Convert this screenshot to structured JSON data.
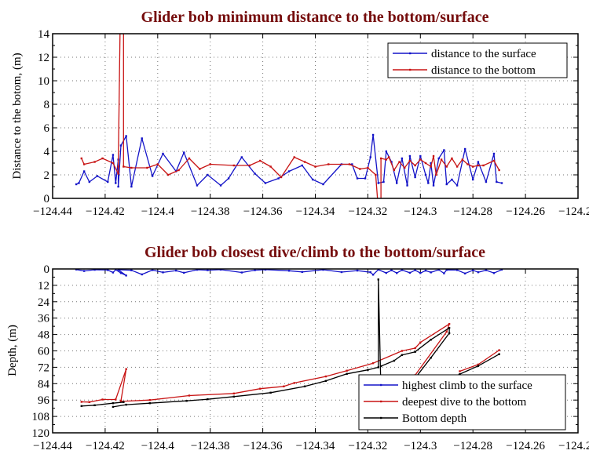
{
  "colors": {
    "surface": "#1414c8",
    "bottom": "#c81414",
    "depth": "#000000",
    "title": "#750c0c"
  },
  "chart_data": [
    {
      "type": "line",
      "title": "Glider bob minimum distance to the bottom/surface",
      "xlabel": "",
      "ylabel": "Distance to the botom, (m)",
      "xlim": [
        -124.44,
        -124.24
      ],
      "ylim": [
        0,
        14
      ],
      "y_inverted": false,
      "xticks": [
        -124.44,
        -124.42,
        -124.4,
        -124.38,
        -124.36,
        -124.34,
        -124.32,
        -124.3,
        -124.28,
        -124.26,
        -124.24
      ],
      "xtick_labels": [
        "−124.44",
        "−124.42",
        "−124.4",
        "−124.38",
        "−124.36",
        "−124.34",
        "−124.32",
        "−124.3",
        "−124.28",
        "−124.26",
        "−124.24"
      ],
      "yticks": [
        0,
        2,
        4,
        6,
        8,
        10,
        12,
        14
      ],
      "ytick_labels": [
        "0",
        "2",
        "4",
        "6",
        "8",
        "10",
        "12",
        "14"
      ],
      "grid": true,
      "legend_position": "top-right",
      "series": [
        {
          "name": "distance to the surface",
          "color_key": "surface",
          "points": [
            [
              -124.431,
              1.2
            ],
            [
              -124.43,
              1.3
            ],
            [
              -124.428,
              2.3
            ],
            [
              -124.426,
              1.4
            ],
            [
              -124.423,
              1.9
            ],
            [
              -124.419,
              1.4
            ],
            [
              -124.417,
              3.7
            ],
            [
              -124.416,
              1.3
            ],
            [
              -124.415,
              3.3
            ],
            [
              -124.415,
              1.0
            ],
            [
              -124.414,
              4.5
            ],
            [
              -124.412,
              5.3
            ],
            [
              -124.41,
              1.0
            ],
            [
              -124.406,
              5.1
            ],
            [
              -124.402,
              1.9
            ],
            [
              -124.398,
              3.8
            ],
            [
              -124.393,
              2.3
            ],
            [
              -124.39,
              3.9
            ],
            [
              -124.385,
              1.1
            ],
            [
              -124.381,
              2.0
            ],
            [
              -124.376,
              1.1
            ],
            [
              -124.373,
              1.7
            ],
            [
              -124.368,
              3.5
            ],
            [
              -124.363,
              2.1
            ],
            [
              -124.359,
              1.3
            ],
            [
              -124.354,
              1.7
            ],
            [
              -124.35,
              2.3
            ],
            [
              -124.345,
              2.8
            ],
            [
              -124.341,
              1.6
            ],
            [
              -124.337,
              1.2
            ],
            [
              -124.33,
              2.9
            ],
            [
              -124.326,
              2.9
            ],
            [
              -124.324,
              1.7
            ],
            [
              -124.321,
              1.7
            ],
            [
              -124.319,
              3.5
            ],
            [
              -124.318,
              5.4
            ],
            [
              -124.316,
              1.3
            ],
            [
              -124.314,
              1.4
            ],
            [
              -124.313,
              4.0
            ],
            [
              -124.311,
              3.1
            ],
            [
              -124.309,
              1.3
            ],
            [
              -124.307,
              3.4
            ],
            [
              -124.305,
              1.1
            ],
            [
              -124.304,
              3.6
            ],
            [
              -124.302,
              1.8
            ],
            [
              -124.3,
              3.6
            ],
            [
              -124.298,
              2.0
            ],
            [
              -124.297,
              1.3
            ],
            [
              -124.296,
              3.0
            ],
            [
              -124.295,
              1.1
            ],
            [
              -124.293,
              3.4
            ],
            [
              -124.291,
              4.1
            ],
            [
              -124.29,
              1.2
            ],
            [
              -124.288,
              1.6
            ],
            [
              -124.286,
              1.1
            ],
            [
              -124.283,
              4.2
            ],
            [
              -124.28,
              1.6
            ],
            [
              -124.278,
              3.1
            ],
            [
              -124.275,
              1.4
            ],
            [
              -124.272,
              3.8
            ],
            [
              -124.271,
              1.4
            ],
            [
              -124.269,
              1.3
            ]
          ]
        },
        {
          "name": "distance to the bottom",
          "color_key": "bottom",
          "points": [
            [
              -124.429,
              3.4
            ],
            [
              -124.428,
              2.9
            ],
            [
              -124.424,
              3.1
            ],
            [
              -124.421,
              3.4
            ],
            [
              -124.417,
              3.0
            ],
            [
              -124.415,
              2.1
            ],
            [
              -124.415,
              2.7
            ],
            [
              -124.414,
              20
            ],
            [
              -124.413,
              20
            ],
            [
              -124.413,
              2.7
            ],
            [
              -124.41,
              2.6
            ],
            [
              -124.404,
              2.6
            ],
            [
              -124.4,
              2.9
            ],
            [
              -124.396,
              2.0
            ],
            [
              -124.392,
              2.4
            ],
            [
              -124.388,
              3.4
            ],
            [
              -124.384,
              2.5
            ],
            [
              -124.38,
              2.9
            ],
            [
              -124.371,
              2.8
            ],
            [
              -124.365,
              2.8
            ],
            [
              -124.361,
              3.2
            ],
            [
              -124.357,
              2.7
            ],
            [
              -124.353,
              1.8
            ],
            [
              -124.348,
              3.5
            ],
            [
              -124.344,
              3.1
            ],
            [
              -124.34,
              2.7
            ],
            [
              -124.335,
              2.9
            ],
            [
              -124.327,
              2.9
            ],
            [
              -124.323,
              2.5
            ],
            [
              -124.32,
              2.6
            ],
            [
              -124.317,
              2.0
            ],
            [
              -124.316,
              -1
            ],
            [
              -124.315,
              -1
            ],
            [
              -124.315,
              3.4
            ],
            [
              -124.313,
              3.3
            ],
            [
              -124.312,
              3.5
            ],
            [
              -124.31,
              2.4
            ],
            [
              -124.308,
              3.1
            ],
            [
              -124.306,
              2.6
            ],
            [
              -124.304,
              3.2
            ],
            [
              -124.302,
              2.8
            ],
            [
              -124.3,
              3.3
            ],
            [
              -124.298,
              3.0
            ],
            [
              -124.296,
              2.7
            ],
            [
              -124.295,
              3.6
            ],
            [
              -124.294,
              2.0
            ],
            [
              -124.292,
              3.3
            ],
            [
              -124.29,
              2.7
            ],
            [
              -124.288,
              3.4
            ],
            [
              -124.286,
              2.7
            ],
            [
              -124.284,
              3.3
            ],
            [
              -124.282,
              2.9
            ],
            [
              -124.28,
              2.7
            ],
            [
              -124.278,
              2.8
            ],
            [
              -124.276,
              2.8
            ],
            [
              -124.272,
              3.2
            ],
            [
              -124.27,
              2.4
            ]
          ]
        }
      ]
    },
    {
      "type": "line",
      "title": "Glider bob closest dive/climb to the bottom/surface",
      "xlabel": "",
      "ylabel": "Depth, (m)",
      "xlim": [
        -124.44,
        -124.24
      ],
      "ylim": [
        0,
        120
      ],
      "y_inverted": true,
      "xticks": [
        -124.44,
        -124.42,
        -124.4,
        -124.38,
        -124.36,
        -124.34,
        -124.32,
        -124.3,
        -124.28,
        -124.26,
        -124.24
      ],
      "xtick_labels": [
        "−124.44",
        "−124.42",
        "−124.4",
        "−124.38",
        "−124.36",
        "−124.34",
        "−124.32",
        "−124.3",
        "−124.28",
        "−124.26",
        "−124.24"
      ],
      "yticks": [
        0,
        12,
        24,
        36,
        48,
        60,
        72,
        84,
        96,
        108,
        120
      ],
      "ytick_labels": [
        "0",
        "12",
        "24",
        "36",
        "48",
        "60",
        "72",
        "84",
        "96",
        "108",
        "120"
      ],
      "grid": true,
      "legend_position": "bottom-right",
      "series": [
        {
          "name": "highest climb to the surface",
          "color_key": "surface",
          "points": [
            [
              -124.431,
              0.4
            ],
            [
              -124.428,
              1.5
            ],
            [
              -124.424,
              0.6
            ],
            [
              -124.419,
              0.8
            ],
            [
              -124.417,
              2.6
            ],
            [
              -124.416,
              0.5
            ],
            [
              -124.414,
              3.0
            ],
            [
              -124.412,
              4.8
            ],
            [
              -124.415,
              0.6
            ],
            [
              -124.41,
              1.0
            ],
            [
              -124.406,
              4.0
            ],
            [
              -124.402,
              0.8
            ],
            [
              -124.398,
              2.5
            ],
            [
              -124.393,
              1.2
            ],
            [
              -124.39,
              2.8
            ],
            [
              -124.385,
              0.6
            ],
            [
              -124.381,
              0.9
            ],
            [
              -124.376,
              0.5
            ],
            [
              -124.368,
              2.6
            ],
            [
              -124.363,
              0.9
            ],
            [
              -124.359,
              0.5
            ],
            [
              -124.35,
              1.3
            ],
            [
              -124.345,
              2.2
            ],
            [
              -124.337,
              0.6
            ],
            [
              -124.33,
              2.3
            ],
            [
              -124.324,
              1.2
            ],
            [
              -124.319,
              2.4
            ],
            [
              -124.318,
              4.2
            ],
            [
              -124.316,
              0.5
            ],
            [
              -124.313,
              2.9
            ],
            [
              -124.311,
              1.0
            ],
            [
              -124.309,
              3.0
            ],
            [
              -124.307,
              0.8
            ],
            [
              -124.304,
              2.8
            ],
            [
              -124.302,
              0.9
            ],
            [
              -124.3,
              3.0
            ],
            [
              -124.298,
              1.2
            ],
            [
              -124.296,
              2.5
            ],
            [
              -124.293,
              0.6
            ],
            [
              -124.291,
              3.2
            ],
            [
              -124.29,
              0.7
            ],
            [
              -124.286,
              0.8
            ],
            [
              -124.283,
              3.3
            ],
            [
              -124.28,
              1.0
            ],
            [
              -124.278,
              2.4
            ],
            [
              -124.275,
              0.9
            ],
            [
              -124.272,
              3.0
            ],
            [
              -124.269,
              0.5
            ]
          ]
        },
        {
          "name": "deepest dive to the bottom",
          "color_key": "bottom",
          "points": [
            [
              -124.429,
              97.3
            ],
            [
              -124.426,
              97.5
            ],
            [
              -124.421,
              95.6
            ],
            [
              -124.416,
              95.6
            ],
            [
              -124.412,
              73.3
            ],
            [
              -124.414,
              96.5
            ],
            null,
            [
              -124.414,
              97
            ],
            [
              -124.403,
              96
            ],
            [
              -124.388,
              92.7
            ],
            [
              -124.371,
              91.2
            ],
            [
              -124.361,
              87.7
            ],
            [
              -124.352,
              86
            ],
            [
              -124.348,
              83.5
            ],
            [
              -124.336,
              78.7
            ],
            [
              -124.328,
              74.5
            ],
            [
              -124.318,
              69
            ],
            [
              -124.307,
              60
            ],
            [
              -124.302,
              58
            ],
            [
              -124.3,
              53.8
            ],
            [
              -124.289,
              40.3
            ],
            [
              -124.29,
              46
            ],
            [
              -124.302,
              77.8
            ],
            null,
            [
              -124.285,
              74.9
            ],
            [
              -124.278,
              70
            ],
            [
              -124.27,
              59.5
            ]
          ]
        },
        {
          "name": "Bottom depth",
          "color_key": "depth",
          "points": [
            [
              -124.429,
              100.4
            ],
            [
              -124.424,
              99.8
            ],
            [
              -124.417,
              98.3
            ],
            [
              -124.413,
              97.5
            ],
            null,
            [
              -124.417,
              101
            ],
            [
              -124.412,
              99.4
            ],
            [
              -124.403,
              98.3
            ],
            [
              -124.389,
              96.6
            ],
            [
              -124.381,
              95.4
            ],
            [
              -124.371,
              93.5
            ],
            [
              -124.357,
              90.6
            ],
            [
              -124.344,
              86
            ],
            [
              -124.336,
              82
            ],
            [
              -124.328,
              76.8
            ],
            [
              -124.32,
              73.9
            ],
            [
              -124.316,
              72
            ],
            [
              -124.316,
              7.7
            ],
            [
              -124.315,
              90
            ],
            null,
            [
              -124.315,
              71.2
            ],
            [
              -124.31,
              67.2
            ],
            [
              -124.307,
              63
            ],
            [
              -124.302,
              60.7
            ],
            [
              -124.296,
              51.8
            ],
            [
              -124.289,
              43.2
            ],
            [
              -124.289,
              47
            ],
            [
              -124.296,
              65
            ],
            [
              -124.302,
              80
            ],
            null,
            [
              -124.288,
              80
            ],
            [
              -124.285,
              77
            ],
            [
              -124.278,
              71
            ],
            [
              -124.27,
              62.4
            ]
          ]
        }
      ]
    }
  ]
}
